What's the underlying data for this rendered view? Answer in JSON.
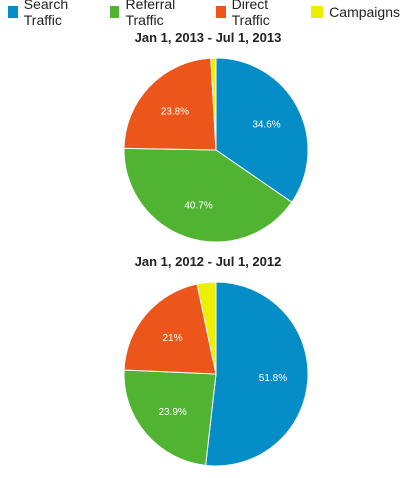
{
  "legend": [
    {
      "label": "Search Traffic",
      "color": "#058dc7"
    },
    {
      "label": "Referral Traffic",
      "color": "#50b432"
    },
    {
      "label": "Direct Traffic",
      "color": "#ed561b"
    },
    {
      "label": "Campaigns",
      "color": "#edef00"
    }
  ],
  "chart_data": [
    {
      "type": "pie",
      "title": "Jan 1, 2013 - Jul 1, 2013",
      "slices": [
        {
          "name": "Search Traffic",
          "value": 34.6,
          "label": "34.6%"
        },
        {
          "name": "Referral Traffic",
          "value": 40.7,
          "label": "40.7%"
        },
        {
          "name": "Direct Traffic",
          "value": 23.8,
          "label": "23.8%"
        },
        {
          "name": "Campaigns",
          "value": 0.9,
          "label": ""
        }
      ]
    },
    {
      "type": "pie",
      "title": "Jan 1, 2012 - Jul 1, 2012",
      "slices": [
        {
          "name": "Search Traffic",
          "value": 51.8,
          "label": "51.8%"
        },
        {
          "name": "Referral Traffic",
          "value": 23.9,
          "label": "23.9%"
        },
        {
          "name": "Direct Traffic",
          "value": 21,
          "label": "21%"
        },
        {
          "name": "Campaigns",
          "value": 3.3,
          "label": ""
        }
      ]
    }
  ]
}
